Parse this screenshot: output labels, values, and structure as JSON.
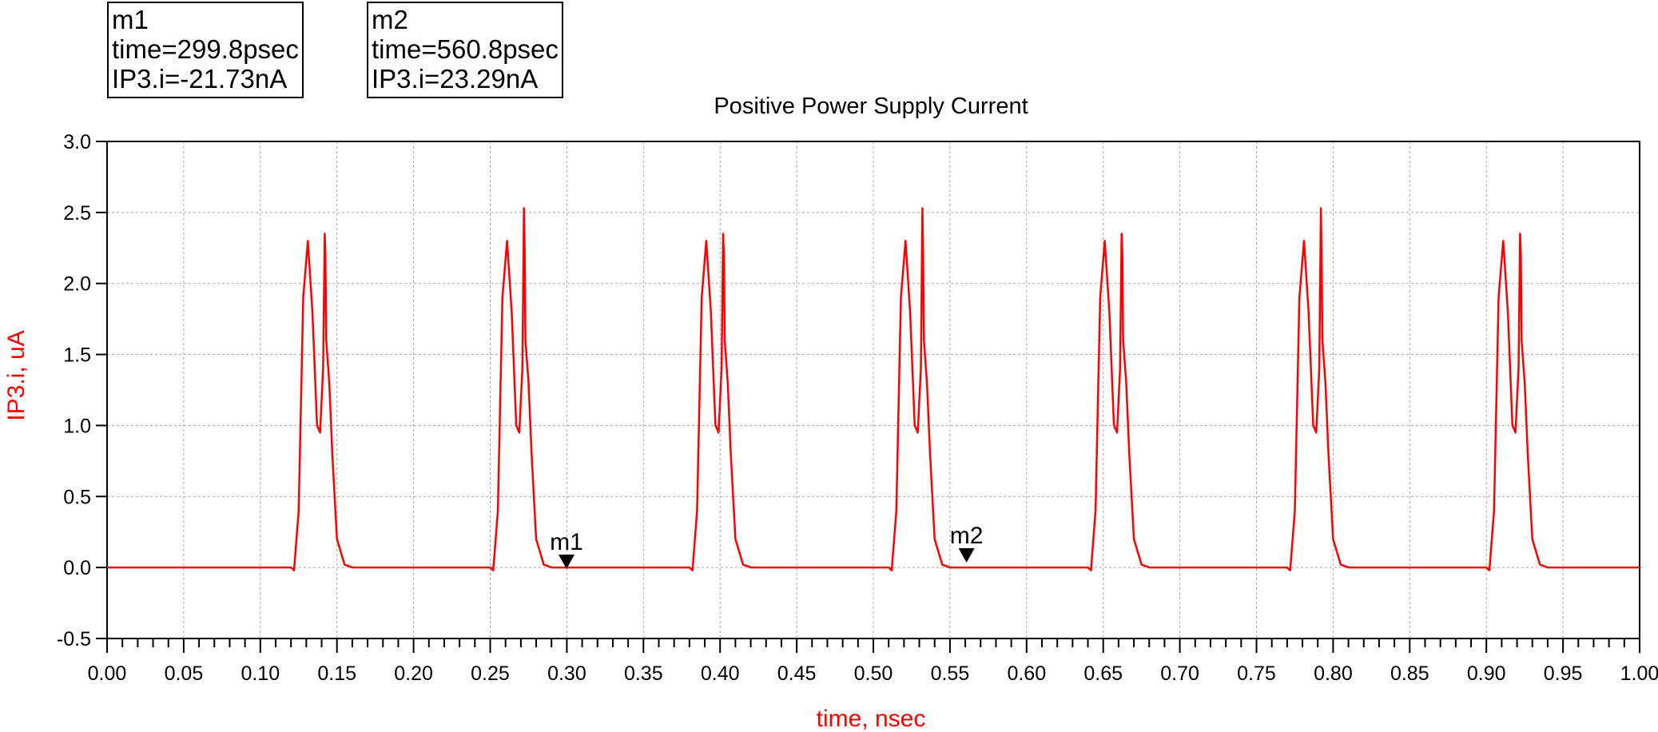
{
  "markers": [
    {
      "name": "m1",
      "time_label": "time=299.8psec",
      "value_label": "IP3.i=-21.73nA",
      "time": 0.2998,
      "value": -0.02173
    },
    {
      "name": "m2",
      "time_label": "time=560.8psec",
      "value_label": "IP3.i=23.29nA",
      "time": 0.5608,
      "value": 0.02329
    }
  ],
  "chart_data": {
    "type": "line",
    "title": "Positive Power Supply Current",
    "xlabel": "time, nsec",
    "ylabel": "IP3.i, uA",
    "xlim": [
      0.0,
      1.0
    ],
    "ylim": [
      -0.5,
      3.0
    ],
    "xticks": [
      "0.00",
      "0.05",
      "0.10",
      "0.15",
      "0.20",
      "0.25",
      "0.30",
      "0.35",
      "0.40",
      "0.45",
      "0.50",
      "0.55",
      "0.60",
      "0.65",
      "0.70",
      "0.75",
      "0.80",
      "0.85",
      "0.90",
      "0.95",
      "1.00"
    ],
    "yticks": [
      "-0.5",
      "0.0",
      "0.5",
      "1.0",
      "1.5",
      "2.0",
      "2.5",
      "3.0"
    ],
    "grid": true,
    "line_color": "#ff0000",
    "series": [
      {
        "x": [
          0.0,
          0.12,
          0.122,
          0.125,
          0.128,
          0.131,
          0.134,
          0.137,
          0.139,
          0.141,
          0.142,
          0.1425,
          0.143,
          0.145,
          0.147,
          0.15,
          0.155,
          0.16,
          0.23,
          0.25,
          0.252,
          0.255,
          0.258,
          0.261,
          0.264,
          0.267,
          0.269,
          0.271,
          0.272,
          0.2725,
          0.273,
          0.275,
          0.277,
          0.28,
          0.285,
          0.29,
          0.36,
          0.38,
          0.382,
          0.385,
          0.388,
          0.391,
          0.394,
          0.397,
          0.399,
          0.401,
          0.402,
          0.4025,
          0.403,
          0.405,
          0.407,
          0.41,
          0.415,
          0.42,
          0.49,
          0.51,
          0.512,
          0.515,
          0.518,
          0.521,
          0.524,
          0.527,
          0.529,
          0.531,
          0.532,
          0.5325,
          0.533,
          0.535,
          0.537,
          0.54,
          0.545,
          0.55,
          0.62,
          0.64,
          0.642,
          0.645,
          0.648,
          0.651,
          0.654,
          0.657,
          0.659,
          0.661,
          0.662,
          0.6625,
          0.663,
          0.665,
          0.667,
          0.67,
          0.675,
          0.68,
          0.75,
          0.77,
          0.772,
          0.775,
          0.778,
          0.781,
          0.784,
          0.787,
          0.789,
          0.791,
          0.792,
          0.7925,
          0.793,
          0.795,
          0.797,
          0.8,
          0.805,
          0.81,
          0.88,
          0.9,
          0.902,
          0.905,
          0.908,
          0.911,
          0.914,
          0.917,
          0.919,
          0.921,
          0.922,
          0.9225,
          0.923,
          0.925,
          0.927,
          0.93,
          0.935,
          0.94,
          1.0
        ],
        "y": [
          0.0,
          0.0,
          -0.02,
          0.4,
          1.9,
          2.3,
          1.8,
          1.0,
          0.95,
          1.4,
          2.35,
          2.2,
          1.6,
          1.3,
          0.8,
          0.2,
          0.02,
          0.0,
          0.0,
          0.0,
          -0.02,
          0.4,
          1.9,
          2.3,
          1.8,
          1.0,
          0.95,
          1.4,
          2.53,
          2.2,
          1.6,
          1.3,
          0.8,
          0.2,
          0.02,
          0.0,
          0.0,
          0.0,
          -0.02,
          0.4,
          1.9,
          2.3,
          1.8,
          1.0,
          0.95,
          1.4,
          2.35,
          2.2,
          1.6,
          1.3,
          0.8,
          0.2,
          0.02,
          0.0,
          0.0,
          0.0,
          -0.02,
          0.4,
          1.9,
          2.3,
          1.8,
          1.0,
          0.95,
          1.4,
          2.53,
          2.2,
          1.6,
          1.3,
          0.8,
          0.2,
          0.02,
          0.0,
          0.0,
          0.0,
          -0.02,
          0.4,
          1.9,
          2.3,
          1.8,
          1.0,
          0.95,
          1.4,
          2.35,
          2.2,
          1.6,
          1.3,
          0.8,
          0.2,
          0.02,
          0.0,
          0.0,
          0.0,
          -0.02,
          0.4,
          1.9,
          2.3,
          1.8,
          1.0,
          0.95,
          1.4,
          2.53,
          2.2,
          1.6,
          1.3,
          0.8,
          0.2,
          0.02,
          0.0,
          0.0,
          0.0,
          -0.02,
          0.4,
          1.9,
          2.3,
          1.8,
          1.0,
          0.95,
          1.4,
          2.35,
          2.2,
          1.6,
          1.3,
          0.8,
          0.2,
          0.02,
          0.0,
          0.0
        ]
      }
    ]
  }
}
